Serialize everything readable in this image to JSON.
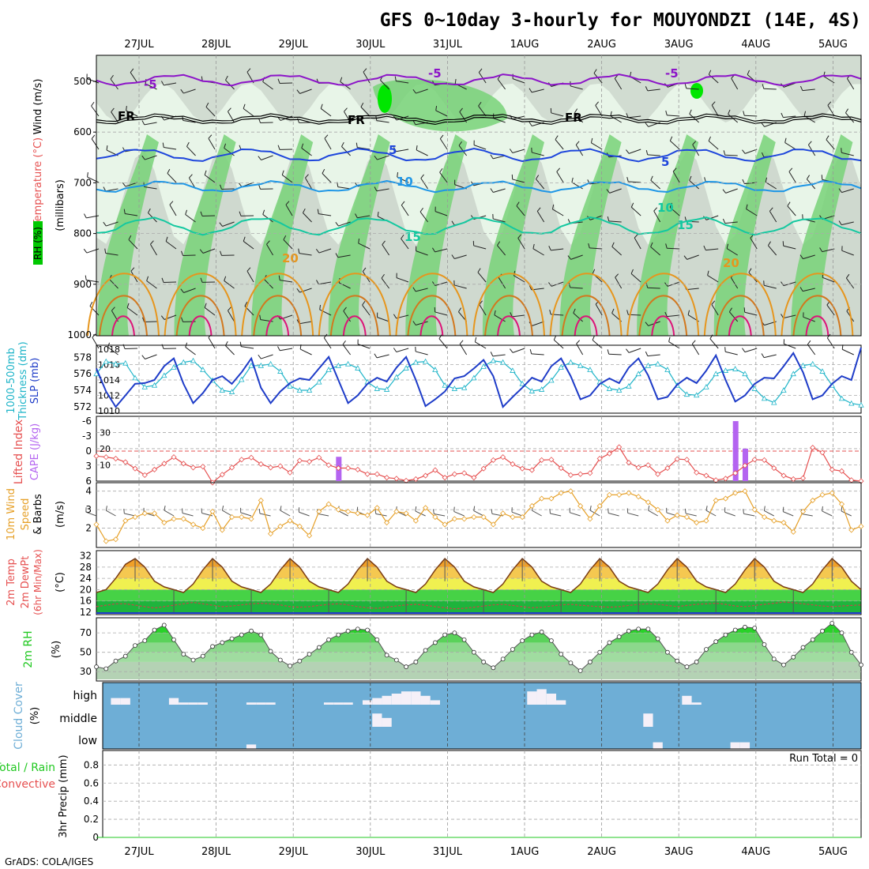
{
  "title": "GFS 0~10day 3-hourly for MOUYONDZI (14E, 4S)",
  "footer": "GrADS: COLA/IGES",
  "run_total": "Run Total = 0",
  "colors": {
    "rh_green_light": "#e8f5e8",
    "rh_grey": "#c8d2c8",
    "rh_green": "#78d278",
    "rh_bright": "#00e600",
    "temp_purple": "#8c14c8",
    "temp_blue": "#1e46dc",
    "temp_lightblue": "#1e96e6",
    "temp_teal": "#14c8a0",
    "temp_orange": "#e6961e",
    "temp_magenta": "#dc1478",
    "slp": "#1e3cc8",
    "thickness": "#1eb4c8",
    "lifted_index": "#e65050",
    "cape": "#b464f0",
    "wind10": "#e6a028",
    "cloud_blue": "#6eaed6",
    "cloud_white": "#f5f0f8",
    "rh2m_green": "#20c820"
  },
  "x_axis": {
    "dates": [
      "27JUL",
      "28JUL",
      "29JUL",
      "30JUL",
      "31JUL",
      "1AUG",
      "2AUG",
      "3AUG",
      "4AUG",
      "5AUG"
    ]
  },
  "panels": {
    "upper_air": {
      "ylabel_wind": "Wind (m/s)",
      "ylabel_temp": "Temperature (°C)",
      "ylabel_rh": "RH (%)",
      "ylabel_units": "(millibars)",
      "yticks": [
        "500",
        "600",
        "700",
        "800",
        "900",
        "1000"
      ]
    },
    "slp_thickness": {
      "ylabel_a": "1000-500mb",
      "ylabel_b": "Thickness (dm)",
      "ylabel_c": "SLP (mb)",
      "yticks_left": [
        "578",
        "576",
        "574",
        "572"
      ],
      "yticks_right": [
        "1018",
        "1016",
        "1014",
        "1012",
        "1010"
      ]
    },
    "li_cape": {
      "ylabel_a": "Lifted Index",
      "ylabel_b": "CAPE (J/kg)",
      "yticks_left": [
        "-6",
        "-3",
        "0",
        "3",
        "6"
      ],
      "yticks_right": [
        "30",
        "20",
        "10"
      ]
    },
    "wind10": {
      "ylabel_a": "10m Wind",
      "ylabel_b": "Speed",
      "ylabel_c": "& Barbs",
      "units": "(m/s)",
      "yticks": [
        "4",
        "3",
        "2"
      ]
    },
    "temp2m": {
      "ylabel_a": "2m Temp",
      "ylabel_b": "2m DewPt",
      "ylabel_c": "(6hr Min/Max)",
      "units": "(°C)",
      "yticks": [
        "32",
        "28",
        "24",
        "20",
        "16",
        "12"
      ]
    },
    "rh2m": {
      "ylabel": "2m RH",
      "units": "(%)",
      "yticks": [
        "70",
        "50",
        "30"
      ]
    },
    "cloud": {
      "ylabel": "Cloud Cover",
      "units": "(%)",
      "levels": [
        "high",
        "middle",
        "low"
      ]
    },
    "precip": {
      "ylabel_a": "Total / Rain",
      "ylabel_b": "Convective",
      "ylabel_c": "3hr Precip (mm)",
      "yticks": [
        "0.8",
        "0.6",
        "0.4",
        "0.2",
        "0"
      ]
    }
  },
  "chart_data": {
    "type": "line",
    "steps": 80,
    "step_hours": 3,
    "slp_mb": [
      1015.5,
      1012.5,
      1010.5,
      1012,
      1013.5,
      1013.6,
      1014,
      1015.8,
      1016.8,
      1013.5,
      1011,
      1012.3,
      1014,
      1014.5,
      1013.5,
      1015,
      1016.8,
      1013,
      1011,
      1012.5,
      1013.6,
      1014.2,
      1014,
      1015.5,
      1017,
      1014,
      1011,
      1012,
      1013.5,
      1014.3,
      1013.8,
      1015.6,
      1017,
      1014,
      1010.6,
      1011.5,
      1012.5,
      1014.2,
      1014.5,
      1015.5,
      1016.6,
      1014.5,
      1010.5,
      1011.8,
      1013,
      1014.3,
      1013.8,
      1015.8,
      1016.8,
      1014.5,
      1011.5,
      1012,
      1013.5,
      1014.2,
      1013.6,
      1015.6,
      1016.8,
      1014.6,
      1011.5,
      1011.8,
      1013.4,
      1014.3,
      1013.6,
      1015.2,
      1017.2,
      1014,
      1011.2,
      1012,
      1013.5,
      1014.3,
      1014.2,
      1015.8,
      1017.5,
      1015,
      1011.5,
      1012,
      1013.5,
      1014.5,
      1014,
      1018.2
    ],
    "thickness_dm": [
      576,
      577.5,
      577.2,
      577.3,
      575.5,
      574.4,
      574.6,
      575.8,
      576.8,
      577.4,
      577.6,
      576.5,
      575.2,
      574,
      573.8,
      575.3,
      577,
      577,
      577.2,
      576.3,
      574.5,
      574,
      574,
      575,
      576.5,
      577,
      577.2,
      576.7,
      575,
      574.2,
      574.1,
      575.6,
      576.7,
      577.4,
      577.5,
      576.5,
      574.6,
      574.2,
      574.3,
      575.5,
      576.9,
      577.6,
      577.4,
      576.4,
      574.8,
      573.9,
      574.1,
      575.2,
      576.8,
      577.4,
      577,
      576.5,
      575,
      574.2,
      574,
      574.5,
      576,
      577,
      577.2,
      576.5,
      574.6,
      573.5,
      573.4,
      574.4,
      576,
      576.4,
      576.6,
      576,
      574.2,
      573,
      572.5,
      574,
      576,
      577,
      577.2,
      576.3,
      574.6,
      573,
      572.4,
      572.2
    ],
    "lifted_index": [
      1,
      1.2,
      1.5,
      2.2,
      3.5,
      4.8,
      3.7,
      2.5,
      1.2,
      2.5,
      3.3,
      3.1,
      6.3,
      4.7,
      3.3,
      1.7,
      1.3,
      2.6,
      3.3,
      3,
      4.3,
      1.9,
      2.1,
      1.3,
      2.8,
      3.4,
      3.4,
      3.7,
      4.6,
      4.6,
      5.3,
      5.5,
      5.9,
      5.6,
      4.9,
      3.8,
      5.3,
      4.6,
      4.4,
      5.3,
      3.5,
      1.8,
      1.2,
      2.6,
      3.5,
      3.8,
      1.8,
      1.7,
      3.4,
      4.8,
      4.6,
      4.4,
      1.5,
      0.5,
      -0.8,
      2.3,
      3.3,
      2.8,
      4.6,
      3.4,
      1.6,
      1.7,
      4.3,
      4.9,
      5.8,
      5.5,
      4.4,
      2.9,
      1.7,
      1.8,
      3.4,
      4.9,
      5.6,
      5.4,
      -0.7,
      0.3,
      3.7,
      4,
      5.8,
      6
    ],
    "cape_jkg": [
      0,
      0,
      0,
      0,
      0,
      0,
      0,
      0,
      0,
      0,
      0,
      0,
      0,
      0,
      0,
      0,
      0,
      0,
      0,
      0,
      0,
      0,
      0,
      0,
      0,
      15,
      0,
      0,
      0,
      0,
      0,
      0,
      0,
      0,
      0,
      0,
      0,
      0,
      0,
      0,
      0,
      0,
      0,
      0,
      0,
      0,
      0,
      0,
      0,
      0,
      0,
      0,
      0,
      0,
      0,
      0,
      0,
      0,
      0,
      0,
      0,
      0,
      0,
      0,
      0,
      0,
      37,
      20,
      0,
      0,
      0,
      0,
      0,
      0,
      0,
      0,
      0,
      0,
      0,
      0
    ],
    "wind10_ms": [
      2.2,
      1.3,
      1.4,
      2.4,
      2.6,
      2.8,
      2.8,
      2.3,
      2.5,
      2.5,
      2.2,
      2,
      2.9,
      1.9,
      2.6,
      2.6,
      2.5,
      3.5,
      1.7,
      2.1,
      2.4,
      2.1,
      1.6,
      2.9,
      3.3,
      3,
      2.9,
      2.8,
      2.7,
      3.1,
      2.3,
      2.9,
      2.8,
      2.4,
      3.1,
      2.6,
      2.2,
      2.5,
      2.5,
      2.6,
      2.6,
      2.2,
      2.8,
      2.6,
      2.6,
      3.2,
      3.6,
      3.6,
      3.9,
      4,
      3.2,
      2.5,
      3.2,
      3.8,
      3.8,
      3.9,
      3.7,
      3.4,
      3,
      2.4,
      2.7,
      2.6,
      2.3,
      2.4,
      3.5,
      3.6,
      3.9,
      4,
      3,
      2.6,
      2.4,
      2.3,
      1.8,
      2.9,
      3.5,
      3.8,
      3.9,
      3.3,
      1.9,
      2.1
    ],
    "temp2m_c": [
      19,
      20,
      24,
      29,
      31,
      28,
      23,
      21,
      20,
      19,
      22,
      27,
      31,
      28,
      23,
      21,
      20,
      19,
      22,
      27,
      31,
      28,
      23,
      21,
      20,
      19,
      22,
      27,
      31,
      28,
      23,
      21,
      20,
      19,
      22,
      27,
      31,
      28,
      23,
      21,
      20,
      19,
      22,
      27,
      31,
      28,
      23,
      21,
      20,
      19,
      22,
      27,
      31,
      28,
      23,
      21,
      20,
      19,
      22,
      27,
      31,
      28,
      23,
      21,
      20,
      19,
      22,
      27,
      31,
      28,
      23,
      21,
      20,
      19,
      22,
      27,
      31,
      28,
      23,
      20
    ],
    "dewpt2m_c": [
      14,
      14.5,
      15,
      15,
      14.5,
      14,
      13.5,
      14,
      14.5,
      15,
      15.5,
      15,
      14.5,
      14,
      14.2,
      14.6,
      15,
      15.2,
      15,
      14.6,
      14,
      13.8,
      14,
      14.4,
      14.8,
      15,
      14.6,
      14,
      13.6,
      13.4,
      13.8,
      14.2,
      14.6,
      14.8,
      14.5,
      14,
      13.6,
      13.2,
      13.4,
      13.8,
      14.2,
      14.6,
      14.8,
      14.4,
      14,
      13.6,
      13.8,
      14.2,
      14.6,
      14.8,
      14.5,
      14.2,
      14,
      13.8,
      14,
      14.4,
      14.8,
      15,
      14.8,
      14.4,
      14,
      14.4,
      14.8,
      15,
      15.2,
      14.8,
      14.2,
      14,
      14.4,
      14.8,
      15.2,
      15.6,
      15.4,
      15,
      14.6,
      14.2,
      14,
      14.2,
      14.4,
      14.6
    ],
    "rh2m_pct": [
      35,
      33,
      41,
      46,
      57,
      62,
      73,
      78,
      63,
      48,
      42,
      46,
      56,
      60,
      64,
      68,
      72,
      68,
      51,
      42,
      36,
      41,
      48,
      55,
      63,
      68,
      72,
      74,
      73,
      63,
      47,
      42,
      35,
      40,
      52,
      60,
      68,
      70,
      63,
      50,
      40,
      34,
      43,
      53,
      62,
      68,
      71,
      62,
      48,
      39,
      31,
      40,
      50,
      60,
      66,
      72,
      74,
      74,
      64,
      50,
      41,
      35,
      40,
      53,
      61,
      68,
      73,
      76,
      75,
      58,
      43,
      37,
      45,
      55,
      63,
      72,
      80,
      70,
      50,
      37
    ],
    "cloud_high_pct": [
      0,
      0,
      30,
      30,
      0,
      0,
      0,
      0,
      30,
      10,
      10,
      10,
      0,
      0,
      0,
      0,
      10,
      10,
      10,
      0,
      0,
      0,
      0,
      0,
      10,
      10,
      10,
      0,
      20,
      30,
      40,
      50,
      60,
      60,
      40,
      20,
      0,
      0,
      0,
      0,
      0,
      0,
      0,
      0,
      0,
      60,
      70,
      50,
      20,
      0,
      0,
      0,
      0,
      0,
      0,
      0,
      0,
      0,
      0,
      0,
      0,
      40,
      10,
      0,
      0,
      0,
      0,
      0,
      0,
      0,
      0,
      0,
      0,
      0,
      0,
      0,
      0,
      0,
      0,
      0
    ],
    "cloud_middle_pct": [
      0,
      0,
      0,
      0,
      0,
      0,
      0,
      0,
      0,
      0,
      0,
      0,
      0,
      0,
      0,
      0,
      0,
      0,
      0,
      0,
      0,
      0,
      0,
      0,
      0,
      0,
      0,
      0,
      0,
      60,
      40,
      0,
      0,
      0,
      0,
      0,
      0,
      0,
      0,
      0,
      0,
      0,
      0,
      0,
      0,
      0,
      0,
      0,
      0,
      0,
      0,
      0,
      0,
      0,
      0,
      0,
      0,
      60,
      0,
      0,
      0,
      0,
      0,
      0,
      0,
      0,
      0,
      0,
      0,
      0,
      0,
      0,
      0,
      0,
      0,
      0,
      0,
      0,
      0,
      0
    ],
    "cloud_low_pct": [
      0,
      0,
      0,
      0,
      0,
      0,
      0,
      0,
      0,
      0,
      0,
      0,
      0,
      0,
      0,
      0,
      20,
      0,
      0,
      0,
      0,
      0,
      0,
      0,
      0,
      0,
      0,
      0,
      0,
      0,
      0,
      0,
      0,
      0,
      0,
      0,
      0,
      0,
      0,
      0,
      0,
      0,
      0,
      0,
      0,
      0,
      0,
      0,
      0,
      0,
      0,
      0,
      0,
      0,
      0,
      0,
      0,
      0,
      30,
      0,
      0,
      0,
      0,
      0,
      0,
      0,
      30,
      30,
      0,
      0,
      0,
      0,
      0,
      0,
      0,
      0,
      0,
      0,
      0,
      0
    ],
    "precip_mm": [
      0,
      0,
      0,
      0,
      0,
      0,
      0,
      0,
      0,
      0,
      0,
      0,
      0,
      0,
      0,
      0,
      0,
      0,
      0,
      0,
      0,
      0,
      0,
      0,
      0,
      0,
      0,
      0,
      0,
      0,
      0,
      0,
      0,
      0,
      0,
      0,
      0,
      0,
      0,
      0,
      0,
      0,
      0,
      0,
      0,
      0,
      0,
      0,
      0,
      0,
      0,
      0,
      0,
      0,
      0,
      0,
      0,
      0,
      0,
      0,
      0,
      0,
      0,
      0,
      0,
      0,
      0,
      0,
      0,
      0,
      0,
      0,
      0,
      0,
      0,
      0,
      0,
      0,
      0,
      0
    ],
    "isotherm_labels": [
      "-5",
      "-5",
      "-5",
      "5",
      "5",
      "10",
      "10",
      "15",
      "15",
      "20",
      "20",
      "FR",
      "FR",
      "FR"
    ]
  }
}
